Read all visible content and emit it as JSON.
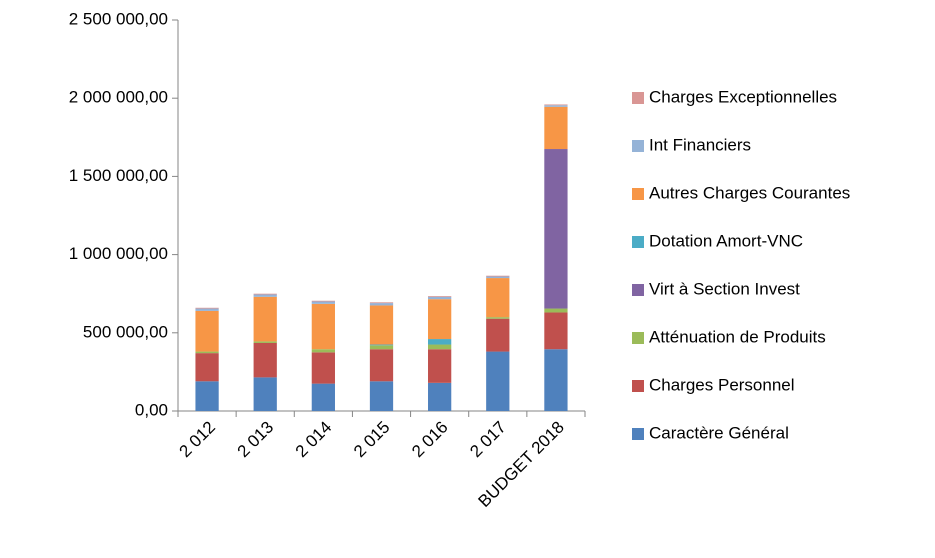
{
  "chart_data": {
    "type": "bar",
    "stacked": true,
    "categories": [
      "2 012",
      "2 013",
      "2 014",
      "2 015",
      "2 016",
      "2 017",
      "BUDGET 2018"
    ],
    "series": [
      {
        "name": "Caractère Général",
        "color": "#4f81bd",
        "values": [
          190000,
          215000,
          175000,
          190000,
          180000,
          380000,
          395000
        ]
      },
      {
        "name": "Charges Personnel",
        "color": "#c0504d",
        "values": [
          180000,
          220000,
          200000,
          205000,
          215000,
          210000,
          235000
        ]
      },
      {
        "name": "Atténuation de Produits",
        "color": "#9bbb59",
        "values": [
          10000,
          10000,
          20000,
          25000,
          30000,
          10000,
          25000
        ]
      },
      {
        "name": "Virt à Section Invest",
        "color": "#8064a2",
        "values": [
          0,
          0,
          0,
          0,
          0,
          0,
          1020000
        ]
      },
      {
        "name": "Dotation Amort-VNC",
        "color": "#4bacc6",
        "values": [
          0,
          0,
          0,
          5000,
          35000,
          0,
          0
        ]
      },
      {
        "name": "Autres Charges Courantes",
        "color": "#f79646",
        "values": [
          260000,
          285000,
          290000,
          250000,
          255000,
          250000,
          270000
        ]
      },
      {
        "name": "Int Financiers",
        "color": "#95b3d7",
        "values": [
          15000,
          15000,
          15000,
          15000,
          15000,
          10000,
          10000
        ]
      },
      {
        "name": "Charges Exceptionnelles",
        "color": "#d99694",
        "values": [
          5000,
          5000,
          5000,
          5000,
          5000,
          5000,
          5000
        ]
      }
    ],
    "ylim": [
      0,
      2500000
    ],
    "yticks": [
      {
        "value": 0,
        "label": "0,00"
      },
      {
        "value": 500000,
        "label": "500 000,00"
      },
      {
        "value": 1000000,
        "label": "1 000 000,00"
      },
      {
        "value": 1500000,
        "label": "1 500 000,00"
      },
      {
        "value": 2000000,
        "label": "2 000 000,00"
      },
      {
        "value": 2500000,
        "label": "2 500 000,00"
      }
    ],
    "grid": false,
    "legend": "right"
  }
}
